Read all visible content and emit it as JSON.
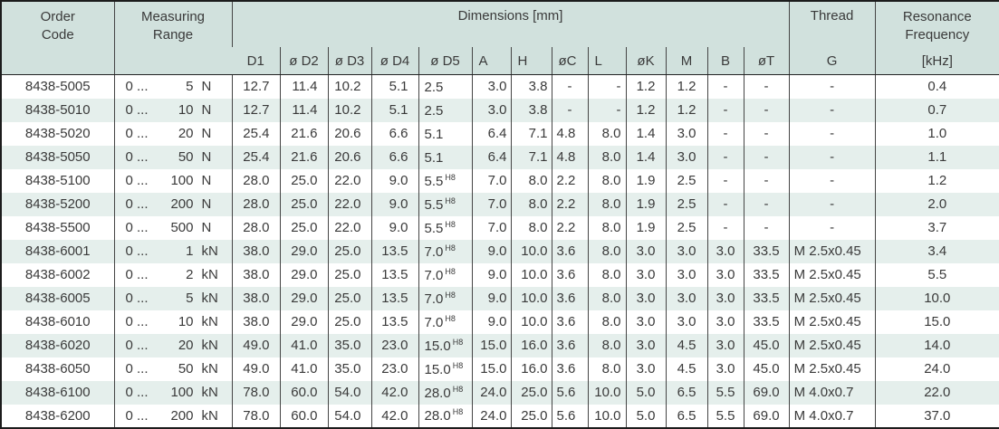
{
  "header": {
    "order_code": "Order\nCode",
    "measuring_range": "Measuring\nRange",
    "dimensions": "Dimensions [mm]",
    "thread": "Thread",
    "resonance": "Resonance\nFrequency",
    "dims": [
      "D1",
      "ø D2",
      "ø D3",
      "ø D4",
      "ø D5",
      "A",
      "H",
      "øC",
      "L",
      "øK",
      "M",
      "B",
      "øT"
    ],
    "thread_sub": "G",
    "resonance_sub": "[kHz]"
  },
  "colors": {
    "header_bg": "#d1e1dd",
    "stripe_bg": "#e5efec",
    "row_bg": "#ffffff",
    "text": "#3a3a3a",
    "border": "#454545"
  },
  "rows": [
    {
      "code": "8438-5005",
      "range": {
        "prefix": "0 ...",
        "value": "5",
        "unit": "N"
      },
      "dims": [
        "12.7",
        "11.4",
        "10.2",
        "5.1",
        "2.5",
        "3.0",
        "3.8",
        "-",
        "-",
        "1.2",
        "1.2",
        "-",
        "-"
      ],
      "d5_sup": "",
      "thread": "-",
      "freq": "0.4"
    },
    {
      "code": "8438-5010",
      "range": {
        "prefix": "0 ...",
        "value": "10",
        "unit": "N"
      },
      "dims": [
        "12.7",
        "11.4",
        "10.2",
        "5.1",
        "2.5",
        "3.0",
        "3.8",
        "-",
        "-",
        "1.2",
        "1.2",
        "-",
        "-"
      ],
      "d5_sup": "",
      "thread": "-",
      "freq": "0.7"
    },
    {
      "code": "8438-5020",
      "range": {
        "prefix": "0 ...",
        "value": "20",
        "unit": "N"
      },
      "dims": [
        "25.4",
        "21.6",
        "20.6",
        "6.6",
        "5.1",
        "6.4",
        "7.1",
        "4.8",
        "8.0",
        "1.4",
        "3.0",
        "-",
        "-"
      ],
      "d5_sup": "",
      "thread": "-",
      "freq": "1.0"
    },
    {
      "code": "8438-5050",
      "range": {
        "prefix": "0 ...",
        "value": "50",
        "unit": "N"
      },
      "dims": [
        "25.4",
        "21.6",
        "20.6",
        "6.6",
        "5.1",
        "6.4",
        "7.1",
        "4.8",
        "8.0",
        "1.4",
        "3.0",
        "-",
        "-"
      ],
      "d5_sup": "",
      "thread": "-",
      "freq": "1.1"
    },
    {
      "code": "8438-5100",
      "range": {
        "prefix": "0 ...",
        "value": "100",
        "unit": "N"
      },
      "dims": [
        "28.0",
        "25.0",
        "22.0",
        "9.0",
        "5.5",
        "7.0",
        "8.0",
        "2.2",
        "8.0",
        "1.9",
        "2.5",
        "-",
        "-"
      ],
      "d5_sup": "H8",
      "thread": "-",
      "freq": "1.2"
    },
    {
      "code": "8438-5200",
      "range": {
        "prefix": "0 ...",
        "value": "200",
        "unit": "N"
      },
      "dims": [
        "28.0",
        "25.0",
        "22.0",
        "9.0",
        "5.5",
        "7.0",
        "8.0",
        "2.2",
        "8.0",
        "1.9",
        "2.5",
        "-",
        "-"
      ],
      "d5_sup": "H8",
      "thread": "-",
      "freq": "2.0"
    },
    {
      "code": "8438-5500",
      "range": {
        "prefix": "0 ...",
        "value": "500",
        "unit": "N"
      },
      "dims": [
        "28.0",
        "25.0",
        "22.0",
        "9.0",
        "5.5",
        "7.0",
        "8.0",
        "2.2",
        "8.0",
        "1.9",
        "2.5",
        "-",
        "-"
      ],
      "d5_sup": "H8",
      "thread": "-",
      "freq": "3.7"
    },
    {
      "code": "8438-6001",
      "range": {
        "prefix": "0 ...",
        "value": "1",
        "unit": "kN"
      },
      "dims": [
        "38.0",
        "29.0",
        "25.0",
        "13.5",
        "7.0",
        "9.0",
        "10.0",
        "3.6",
        "8.0",
        "3.0",
        "3.0",
        "3.0",
        "33.5"
      ],
      "d5_sup": "H8",
      "thread": "M 2.5x0.45",
      "freq": "3.4"
    },
    {
      "code": "8438-6002",
      "range": {
        "prefix": "0 ...",
        "value": "2",
        "unit": "kN"
      },
      "dims": [
        "38.0",
        "29.0",
        "25.0",
        "13.5",
        "7.0",
        "9.0",
        "10.0",
        "3.6",
        "8.0",
        "3.0",
        "3.0",
        "3.0",
        "33.5"
      ],
      "d5_sup": "H8",
      "thread": "M 2.5x0.45",
      "freq": "5.5"
    },
    {
      "code": "8438-6005",
      "range": {
        "prefix": "0 ...",
        "value": "5",
        "unit": "kN"
      },
      "dims": [
        "38.0",
        "29.0",
        "25.0",
        "13.5",
        "7.0",
        "9.0",
        "10.0",
        "3.6",
        "8.0",
        "3.0",
        "3.0",
        "3.0",
        "33.5"
      ],
      "d5_sup": "H8",
      "thread": "M 2.5x0.45",
      "freq": "10.0"
    },
    {
      "code": "8438-6010",
      "range": {
        "prefix": "0 ...",
        "value": "10",
        "unit": "kN"
      },
      "dims": [
        "38.0",
        "29.0",
        "25.0",
        "13.5",
        "7.0",
        "9.0",
        "10.0",
        "3.6",
        "8.0",
        "3.0",
        "3.0",
        "3.0",
        "33.5"
      ],
      "d5_sup": "H8",
      "thread": "M 2.5x0.45",
      "freq": "15.0"
    },
    {
      "code": "8438-6020",
      "range": {
        "prefix": "0 ...",
        "value": "20",
        "unit": "kN"
      },
      "dims": [
        "49.0",
        "41.0",
        "35.0",
        "23.0",
        "15.0",
        "15.0",
        "16.0",
        "3.6",
        "8.0",
        "3.0",
        "4.5",
        "3.0",
        "45.0"
      ],
      "d5_sup": "H8",
      "thread": "M 2.5x0.45",
      "freq": "14.0"
    },
    {
      "code": "8438-6050",
      "range": {
        "prefix": "0 ...",
        "value": "50",
        "unit": "kN"
      },
      "dims": [
        "49.0",
        "41.0",
        "35.0",
        "23.0",
        "15.0",
        "15.0",
        "16.0",
        "3.6",
        "8.0",
        "3.0",
        "4.5",
        "3.0",
        "45.0"
      ],
      "d5_sup": "H8",
      "thread": "M 2.5x0.45",
      "freq": "24.0"
    },
    {
      "code": "8438-6100",
      "range": {
        "prefix": "0 ...",
        "value": "100",
        "unit": "kN"
      },
      "dims": [
        "78.0",
        "60.0",
        "54.0",
        "42.0",
        "28.0",
        "24.0",
        "25.0",
        "5.6",
        "10.0",
        "5.0",
        "6.5",
        "5.5",
        "69.0"
      ],
      "d5_sup": "H8",
      "thread": "M 4.0x0.7",
      "freq": "22.0"
    },
    {
      "code": "8438-6200",
      "range": {
        "prefix": "0 ...",
        "value": "200",
        "unit": "kN"
      },
      "dims": [
        "78.0",
        "60.0",
        "54.0",
        "42.0",
        "28.0",
        "24.0",
        "25.0",
        "5.6",
        "10.0",
        "5.0",
        "6.5",
        "5.5",
        "69.0"
      ],
      "d5_sup": "H8",
      "thread": "M 4.0x0.7",
      "freq": "37.0"
    }
  ]
}
